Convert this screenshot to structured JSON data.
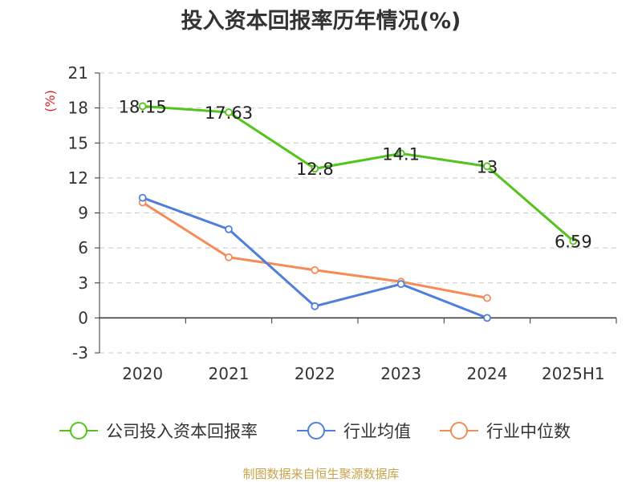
{
  "title": "投入资本回报率历年情况(%)",
  "source": "制图数据来自恒生聚源数据库",
  "chart_data": {
    "type": "line",
    "title": "投入资本回报率历年情况(%)",
    "ylabel": "(%)",
    "categories": [
      "2020",
      "2021",
      "2022",
      "2023",
      "2024",
      "2025H1"
    ],
    "ylim": [
      -3,
      21
    ],
    "yticks": [
      -3,
      0,
      3,
      6,
      9,
      12,
      15,
      18,
      21
    ],
    "grid": true,
    "legend_position": "bottom",
    "series": [
      {
        "name": "公司投入资本回报率",
        "color": "#52c41a",
        "values": [
          18.15,
          17.63,
          12.8,
          14.1,
          13,
          6.59
        ],
        "labels": [
          "18.15",
          "17.63",
          "12.8",
          "14.1",
          "13",
          "6.59"
        ]
      },
      {
        "name": "行业均值",
        "color": "#4f7fdc",
        "values": [
          10.3,
          7.6,
          1.0,
          2.9,
          0.0,
          null
        ]
      },
      {
        "name": "行业中位数",
        "color": "#f58b57",
        "values": [
          9.9,
          5.2,
          4.1,
          3.1,
          1.7,
          null
        ]
      }
    ]
  }
}
